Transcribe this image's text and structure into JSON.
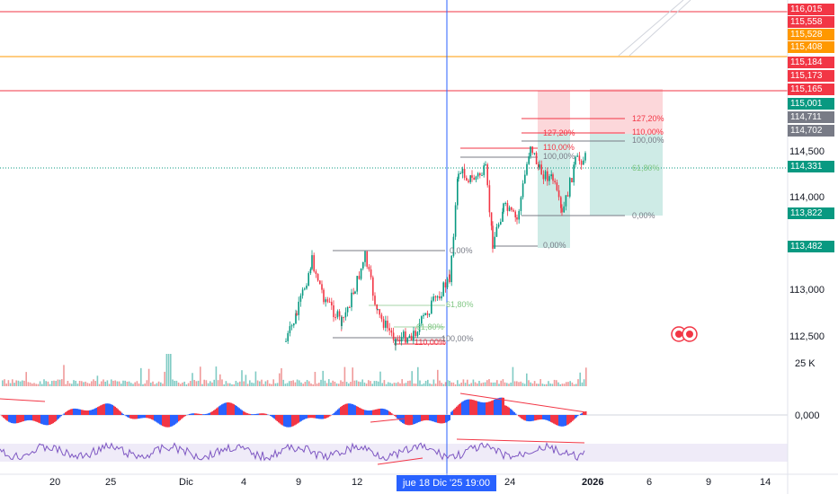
{
  "price_axis": {
    "labels": [
      {
        "text": "116,015",
        "color": "#f23645"
      },
      {
        "text": "115,558",
        "color": "#f23645"
      },
      {
        "text": "115,528",
        "color": "#ff9800"
      },
      {
        "text": "115,408",
        "color": "#ff9800"
      },
      {
        "text": "115,184",
        "color": "#f23645"
      },
      {
        "text": "115,173",
        "color": "#f23645"
      },
      {
        "text": "115,165",
        "color": "#f23645"
      },
      {
        "text": "115,001",
        "color": "#089981"
      },
      {
        "text": "114,711",
        "color": "#787b86"
      },
      {
        "text": "114,702",
        "color": "#787b86"
      },
      {
        "text": "114,331",
        "color": "#089981"
      },
      {
        "text": "113,822",
        "color": "#089981"
      },
      {
        "text": "113,482",
        "color": "#089981"
      }
    ],
    "ticks": [
      "114,500",
      "114,000",
      "113,000",
      "112,500"
    ],
    "volume_tick": "25 K",
    "oscillator_tick": "0,000"
  },
  "date_axis": {
    "ticks": [
      "20",
      "25",
      "Dic",
      "4",
      "9",
      "12",
      "24",
      "2026",
      "6",
      "9",
      "14"
    ],
    "crosshair_label": "jue 18 Dic '25   19:00"
  },
  "fib_labels": {
    "left_zone": [
      "0,00%",
      "61,80%",
      "61,80%",
      "100,00%",
      "110,00%"
    ],
    "middle_zone": [
      "127,20%",
      "110,00%",
      "100,00%",
      "0,00%"
    ],
    "right_zone": [
      "127,20%",
      "110,00%",
      "100,00%",
      "61,80%",
      "0,00%"
    ]
  },
  "colors": {
    "up": "#089981",
    "down": "#f23645",
    "accent": "#2962ff",
    "orange": "#ff9800",
    "grid": "#f0f3fa"
  },
  "icons": {
    "flag": "canada-flag-icon"
  }
}
